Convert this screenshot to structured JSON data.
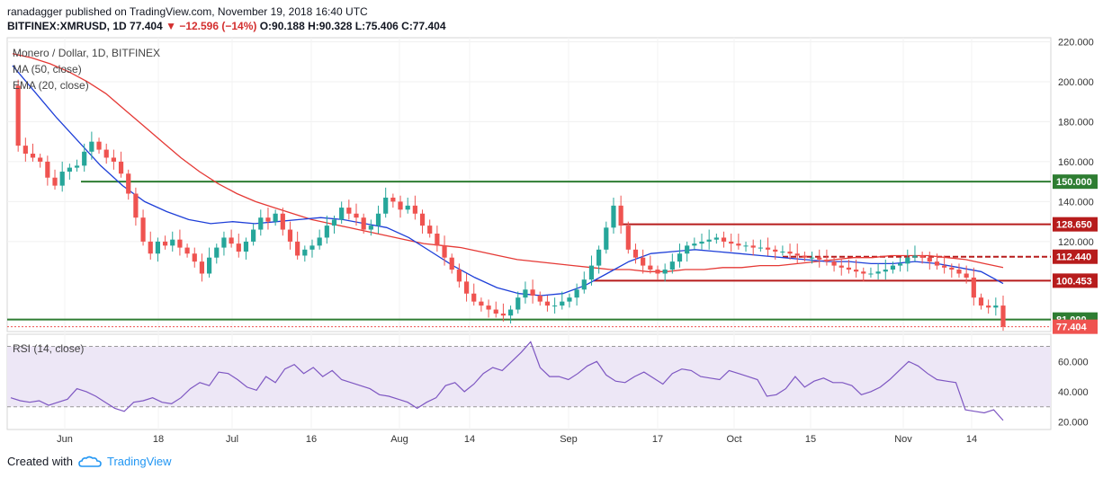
{
  "header": {
    "publisher": "ranadagger published on TradingView.com, November 19, 2018 16:40 UTC",
    "symbol": "BITFINEX:XMRUSD, 1D",
    "last": "77.404",
    "change": "−12.596 (−14%)",
    "ohlc": "O:90.188  H:90.328  L:75.406  C:77.404"
  },
  "footer": {
    "created_with": "Created with",
    "brand": "TradingView"
  },
  "colors": {
    "up": "#26a69a",
    "down": "#ef5350",
    "ma50": "#e53935",
    "ema20": "#1e3fd8",
    "support_green": "#2e7d32",
    "resist_red": "#b71c1c",
    "rsi": "#7e57c2",
    "rsi_band": "#ede7f6"
  },
  "chart_data": [
    {
      "type": "candlestick",
      "title": "Monero / Dollar, 1D, BITFINEX",
      "legend": [
        "MA (50, close)",
        "EMA (20, close)"
      ],
      "yticks": [
        "220.000",
        "200.000",
        "180.000",
        "160.000",
        "140.000",
        "120.000"
      ],
      "ylim": [
        75,
        222
      ],
      "xticks": [
        "Jun",
        "18",
        "Jul",
        "16",
        "Aug",
        "14",
        "Sep",
        "17",
        "Oct",
        "15",
        "Nov",
        "14"
      ],
      "levels": [
        {
          "label": "150.000",
          "value": 150,
          "color": "green"
        },
        {
          "label": "128.650",
          "value": 128.65,
          "color": "red"
        },
        {
          "label": "112.440",
          "value": 112.44,
          "color": "red"
        },
        {
          "label": "100.453",
          "value": 100.453,
          "color": "red"
        },
        {
          "label": "81.000",
          "value": 81,
          "color": "green"
        }
      ],
      "last_price": {
        "label": "77.404",
        "value": 77.404
      },
      "close_path": [
        198,
        168,
        164,
        162,
        160,
        152,
        148,
        155,
        157,
        158,
        165,
        170,
        166,
        162,
        160,
        154,
        144,
        132,
        120,
        114,
        120,
        118,
        121,
        117,
        114,
        110,
        104,
        112,
        117,
        122,
        119,
        115,
        120,
        126,
        132,
        130,
        134,
        126,
        120,
        113,
        116,
        118,
        122,
        128,
        131,
        137,
        134,
        132,
        126,
        128,
        134,
        142,
        140,
        136,
        138,
        134,
        128,
        124,
        118,
        112,
        106,
        100,
        94,
        90,
        88,
        86,
        84,
        83,
        86,
        92,
        96,
        93,
        90,
        88,
        88,
        90,
        92,
        96,
        101,
        108,
        116,
        127,
        138,
        128,
        116,
        112,
        108,
        106,
        104,
        106,
        110,
        114,
        118,
        119,
        120,
        121,
        122,
        120,
        119,
        118,
        118,
        117,
        117,
        116,
        115,
        115,
        114,
        113,
        112,
        112,
        111,
        110,
        108,
        107,
        106,
        105,
        104,
        104,
        105,
        106,
        108,
        109,
        112,
        113,
        112,
        110,
        108,
        107,
        106,
        104,
        102,
        92,
        88,
        87,
        88,
        77.404
      ],
      "ma50_path": [
        214,
        212,
        209,
        205,
        200,
        194,
        186,
        178,
        170,
        162,
        155,
        149,
        144,
        140,
        137,
        134,
        131,
        129,
        127,
        125,
        123,
        121,
        119,
        118,
        117,
        115,
        113,
        111,
        110,
        109,
        108,
        107,
        106,
        106,
        105,
        105,
        106,
        106,
        107,
        107,
        108,
        108,
        109,
        110,
        111,
        112,
        112,
        113,
        113,
        113,
        112,
        111,
        109,
        107
      ],
      "ema20_path": [
        208,
        195,
        182,
        170,
        158,
        148,
        140,
        135,
        131,
        129,
        130,
        129,
        130,
        131,
        132,
        131,
        129,
        127,
        122,
        115,
        108,
        102,
        97,
        94,
        93,
        94,
        98,
        104,
        110,
        114,
        115,
        116,
        115,
        114,
        113,
        112,
        111,
        110,
        110,
        109,
        109,
        110,
        109,
        107,
        105,
        99
      ],
      "rsi": {
        "label": "RSI (14, close)",
        "yticks": [
          "60.000",
          "40.000",
          "20.000"
        ],
        "ylim": [
          15,
          78
        ],
        "band": [
          30,
          70
        ],
        "values": [
          36,
          34,
          33,
          34,
          31,
          33,
          35,
          42,
          40,
          37,
          33,
          29,
          27,
          33,
          34,
          36,
          33,
          32,
          36,
          42,
          46,
          44,
          53,
          52,
          48,
          43,
          41,
          50,
          46,
          55,
          58,
          52,
          56,
          50,
          54,
          48,
          46,
          44,
          42,
          38,
          37,
          35,
          33,
          29,
          33,
          36,
          44,
          46,
          40,
          45,
          52,
          56,
          54,
          60,
          66,
          73,
          56,
          50,
          50,
          48,
          52,
          57,
          60,
          51,
          47,
          46,
          50,
          53,
          49,
          45,
          52,
          55,
          54,
          50,
          49,
          48,
          54,
          52,
          50,
          48,
          37,
          38,
          42,
          50,
          43,
          47,
          49,
          46,
          46,
          44,
          38,
          40,
          43,
          48,
          54,
          60,
          57,
          52,
          48,
          47,
          46,
          28,
          27,
          26,
          28,
          21
        ]
      }
    }
  ]
}
